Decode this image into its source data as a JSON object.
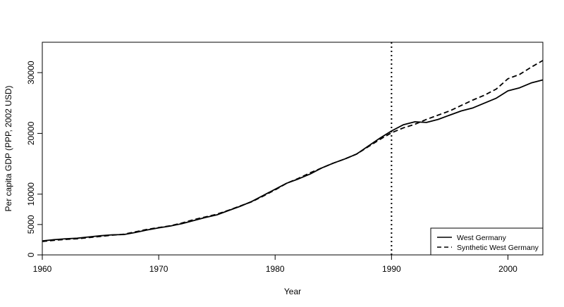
{
  "chart_data": {
    "type": "line",
    "title": "",
    "xlabel": "Year",
    "ylabel": "Per capita GDP (PPP, 2002 USD)",
    "xlim": [
      1960,
      2003
    ],
    "ylim": [
      0,
      35000
    ],
    "x_ticks": [
      1960,
      1970,
      1980,
      1990,
      2000
    ],
    "y_ticks": [
      0,
      5000,
      10000,
      20000,
      30000
    ],
    "x_tick_labels": [
      "1960",
      "1970",
      "1980",
      "1990",
      "2000"
    ],
    "y_tick_labels": [
      "0",
      "5000",
      "10000",
      "20000",
      "30000"
    ],
    "grid": false,
    "legend_position": "bottom-right",
    "vline": {
      "x": 1990,
      "style": "dotted"
    },
    "x": [
      1960,
      1961,
      1962,
      1963,
      1964,
      1965,
      1966,
      1967,
      1968,
      1969,
      1970,
      1971,
      1972,
      1973,
      1974,
      1975,
      1976,
      1977,
      1978,
      1979,
      1980,
      1981,
      1982,
      1983,
      1984,
      1985,
      1986,
      1987,
      1988,
      1989,
      1990,
      1991,
      1992,
      1993,
      1994,
      1995,
      1996,
      1997,
      1998,
      1999,
      2000,
      2001,
      2002,
      2003
    ],
    "series": [
      {
        "name": "West Germany",
        "style": "solid",
        "values": [
          2300,
          2500,
          2650,
          2750,
          2950,
          3150,
          3300,
          3350,
          3700,
          4100,
          4450,
          4750,
          5150,
          5650,
          6150,
          6600,
          7300,
          8000,
          8800,
          9800,
          10800,
          11800,
          12500,
          13300,
          14300,
          15100,
          15800,
          16600,
          17900,
          19200,
          20400,
          21400,
          21900,
          21800,
          22300,
          23000,
          23700,
          24200,
          25000,
          25800,
          27000,
          27500,
          28300,
          28800
        ]
      },
      {
        "name": "Synthetic West Germany",
        "style": "dashed",
        "values": [
          2200,
          2400,
          2550,
          2650,
          2850,
          3050,
          3250,
          3400,
          3800,
          4200,
          4500,
          4800,
          5250,
          5800,
          6250,
          6700,
          7350,
          8050,
          8750,
          9700,
          10700,
          11800,
          12600,
          13500,
          14300,
          15100,
          15800,
          16600,
          17800,
          19000,
          20100,
          20900,
          21500,
          22300,
          23000,
          23700,
          24600,
          25500,
          26300,
          27300,
          29000,
          29700,
          30900,
          32000
        ]
      }
    ]
  }
}
